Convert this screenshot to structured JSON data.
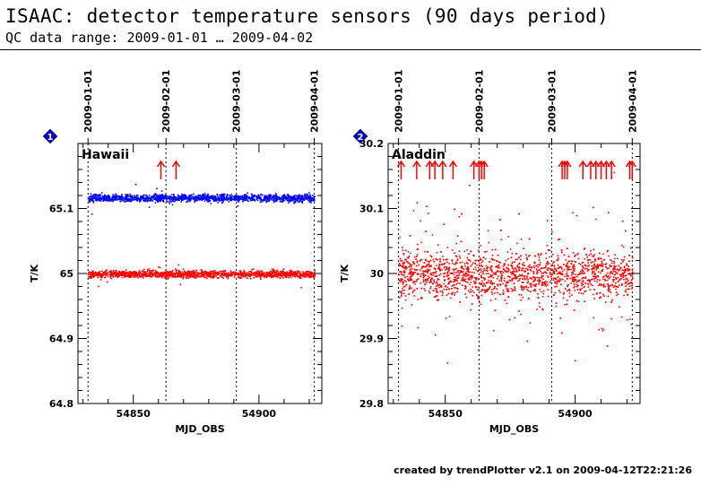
{
  "header": {
    "title": "ISAAC: detector temperature sensors (90 days period)",
    "subtitle": "QC data range: 2009-01-01 … 2009-04-02"
  },
  "footer": "created by trendPlotter v2.1 on 2009-04-12T22:21:26",
  "colors": {
    "blue": "#0000ff",
    "red": "#ff0000",
    "badge": "#0000cc"
  },
  "chart_data": [
    {
      "type": "scatter",
      "panel_badge": "1",
      "title": "Hawaii",
      "xlabel": "MJD_OBS",
      "ylabel": "T/K",
      "xlim": [
        54828,
        54925
      ],
      "ylim": [
        64.8,
        65.2
      ],
      "x_ticks": [
        54850,
        54900
      ],
      "y_ticks": [
        64.8,
        64.9,
        65,
        65.1
      ],
      "y_tick_labels": [
        "64.8",
        "64.9",
        "65",
        "65.1"
      ],
      "date_ticks": [
        {
          "label": "2009-01-01",
          "mjd": 54832
        },
        {
          "label": "2009-02-01",
          "mjd": 54863
        },
        {
          "label": "2009-03-01",
          "mjd": 54891
        },
        {
          "label": "2009-04-01",
          "mjd": 54922
        }
      ],
      "series": [
        {
          "color": "#0000ff",
          "level": 65.117,
          "noise": 0.004,
          "range": [
            54832,
            54922
          ]
        },
        {
          "color": "#ff0000",
          "level": 65.0,
          "noise": 0.004,
          "range": [
            54832,
            54922
          ]
        }
      ],
      "out_of_range_arrows": [
        54861,
        54867
      ]
    },
    {
      "type": "scatter",
      "panel_badge": "2",
      "title": "Aladdin",
      "xlabel": "MJD_OBS",
      "ylabel": "T/K",
      "xlim": [
        54828,
        54925
      ],
      "ylim": [
        29.8,
        30.2
      ],
      "x_ticks": [
        54850,
        54900
      ],
      "y_ticks": [
        29.8,
        29.9,
        30,
        30.1,
        30.2
      ],
      "y_tick_labels": [
        "29.8",
        "29.9",
        "30",
        "30.1",
        "30.2"
      ],
      "date_ticks": [
        {
          "label": "2009-01-01",
          "mjd": 54832
        },
        {
          "label": "2009-02-01",
          "mjd": 54863
        },
        {
          "label": "2009-03-01",
          "mjd": 54891
        },
        {
          "label": "2009-04-01",
          "mjd": 54922
        }
      ],
      "series": [
        {
          "color": "#ff0000",
          "level": 30.0,
          "noise": 0.025,
          "range": [
            54832,
            54922
          ]
        }
      ],
      "out_of_range_arrows": [
        54833,
        54839,
        54844,
        54846,
        54849,
        54853,
        54861,
        54863,
        54864,
        54865,
        54895,
        54896,
        54897,
        54903,
        54906,
        54908,
        54910,
        54912,
        54914,
        54921,
        54922
      ]
    }
  ]
}
